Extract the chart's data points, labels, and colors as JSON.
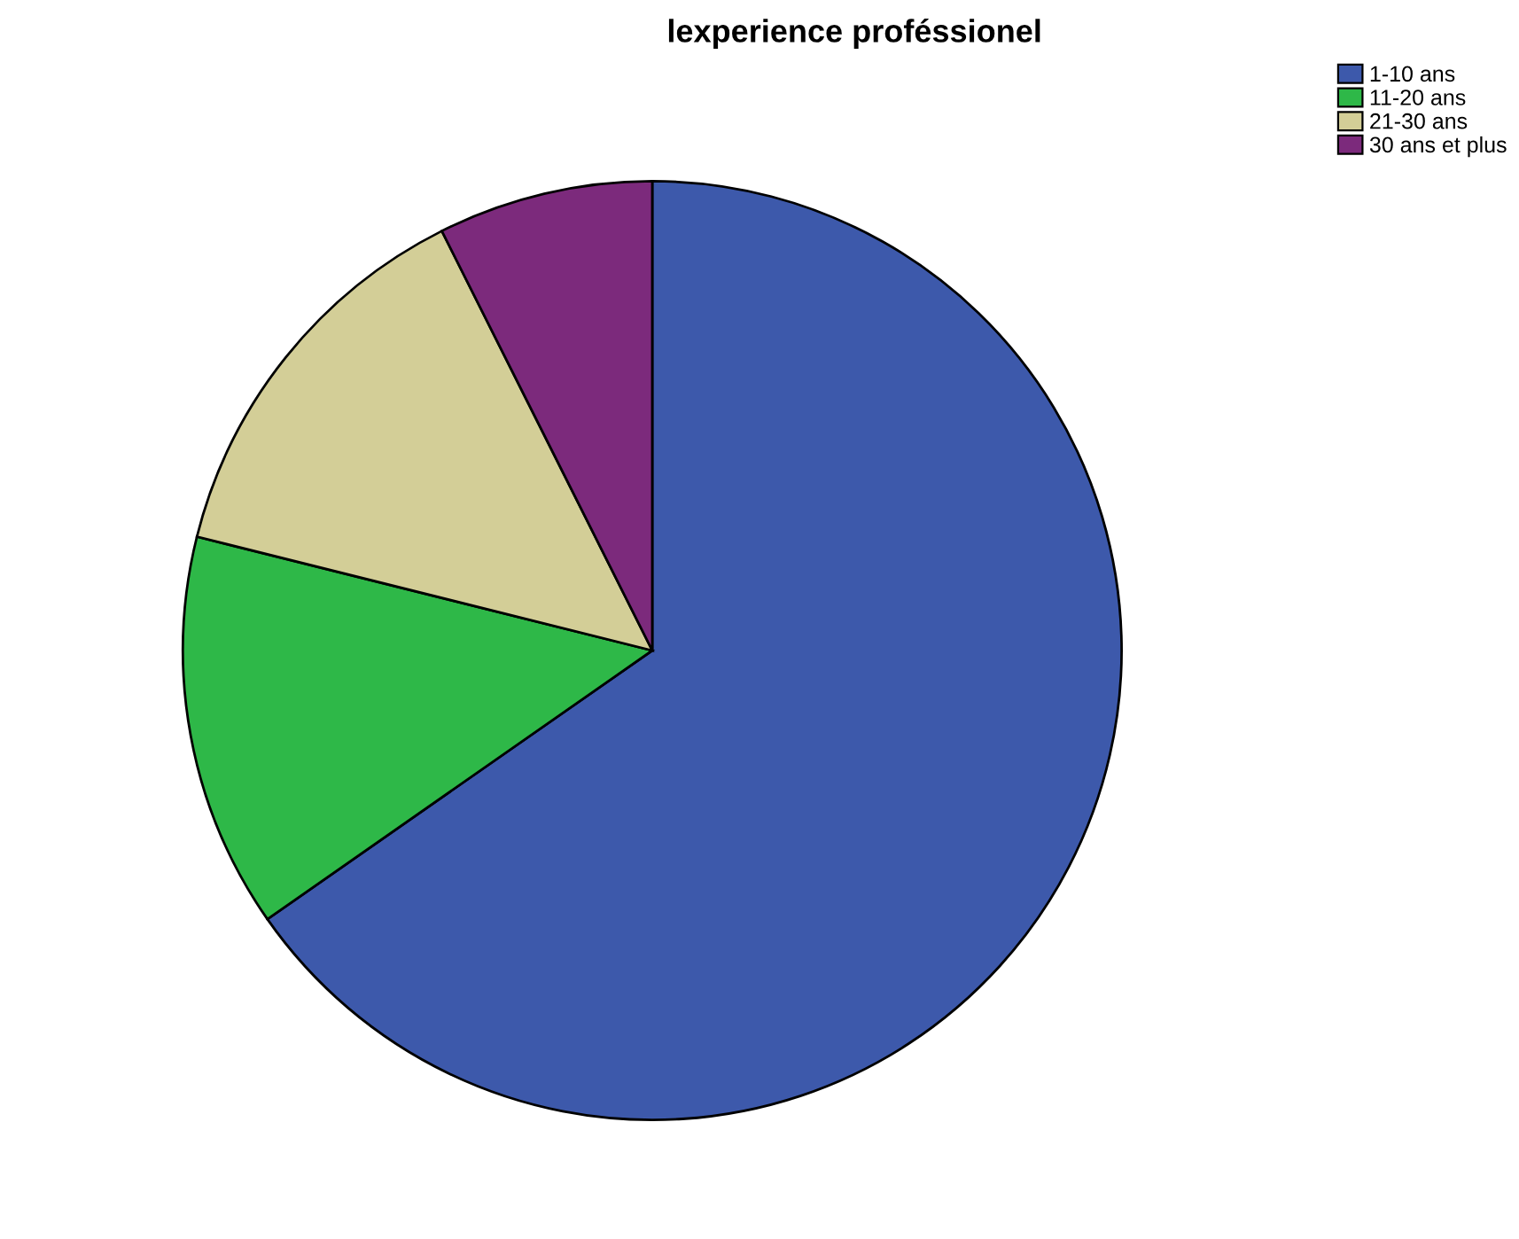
{
  "chart_data": {
    "type": "pie",
    "title": "lexperience proféssionel",
    "categories": [
      "1-10 ans",
      "11-20 ans",
      "21-30 ans",
      "30 ans et plus"
    ],
    "values": [
      65.3,
      13.6,
      13.7,
      7.4
    ],
    "colors": [
      "#3d59ab",
      "#2eb848",
      "#d3ce97",
      "#7c2a7c"
    ],
    "legend": "top right"
  }
}
